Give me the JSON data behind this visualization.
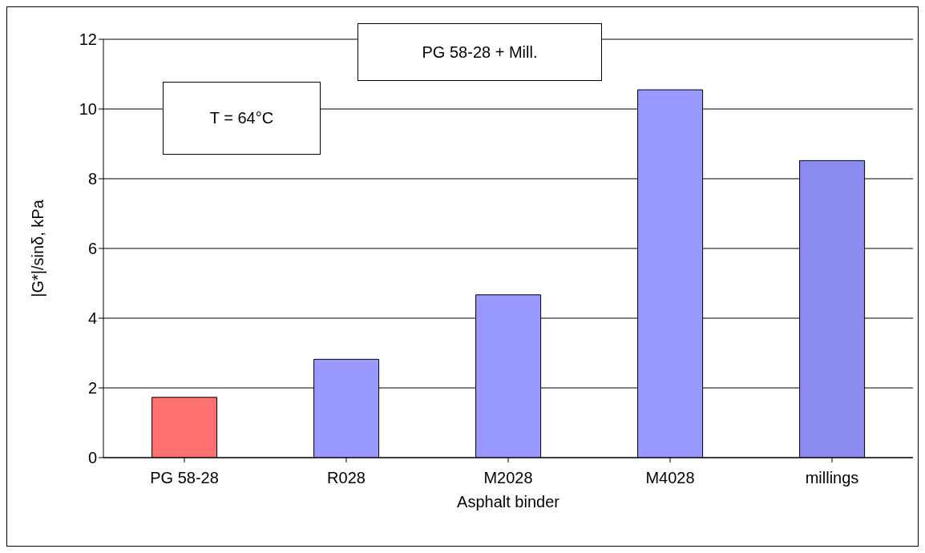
{
  "chart_data": {
    "type": "bar",
    "categories": [
      "PG 58-28",
      "R028",
      "M2028",
      "M4028",
      "millings"
    ],
    "values": [
      1.73,
      2.82,
      4.67,
      10.55,
      8.52
    ],
    "colors": [
      "#ff7070",
      "#9999ff",
      "#9999ff",
      "#9999ff",
      "#8c8cf0"
    ],
    "xlabel": "Asphalt binder",
    "ylabel": "|G*|/sinδ, kPa",
    "ylim": [
      0,
      12
    ],
    "yticks": [
      0,
      2,
      4,
      6,
      8,
      10,
      12
    ],
    "grid": "y",
    "annotations": [
      "PG 58-28 + Mill.",
      "T = 64°C"
    ]
  }
}
